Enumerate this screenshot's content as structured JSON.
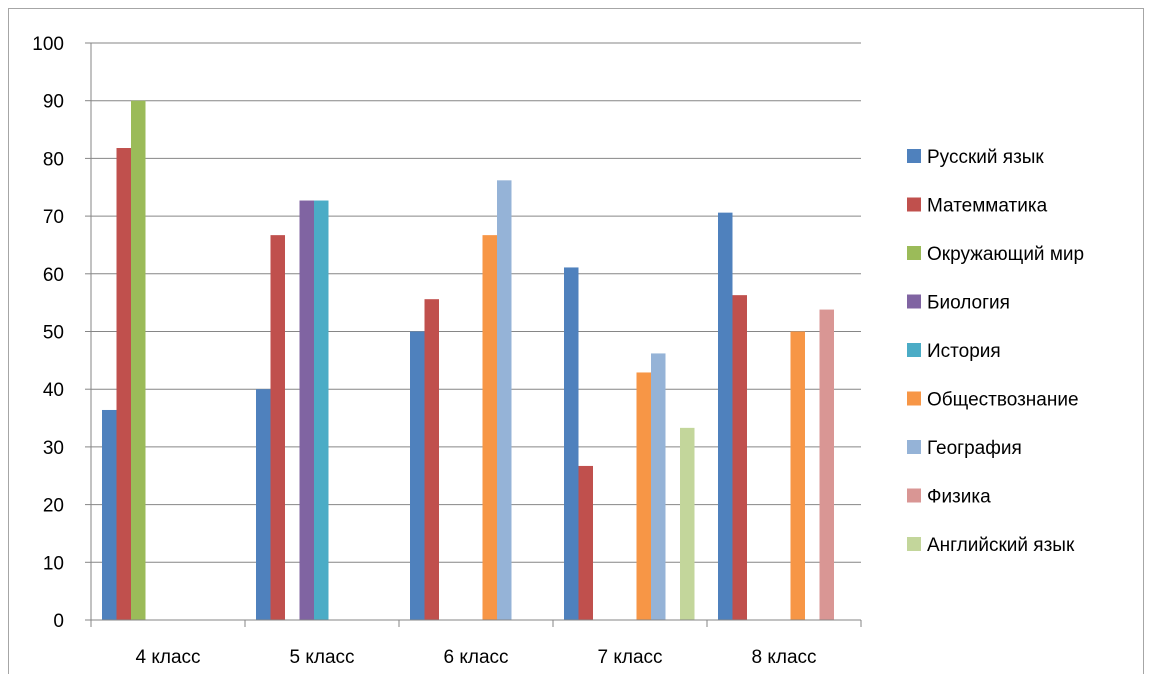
{
  "chart_data": {
    "type": "bar",
    "title": "",
    "xlabel": "",
    "ylabel": "",
    "ylim": [
      0,
      100
    ],
    "yticks": [
      "0",
      "10",
      "20",
      "30",
      "40",
      "50",
      "60",
      "70",
      "80",
      "90",
      "100"
    ],
    "grid": true,
    "legend_position": "right",
    "categories": [
      "4 класс",
      "5 класс",
      "6 класс",
      "7 класс",
      "8 класс"
    ],
    "series": [
      {
        "name": "Русский язык",
        "color": "#4F81BD",
        "values": [
          36.4,
          40,
          50,
          61.1,
          70.6
        ]
      },
      {
        "name": "Матемматика",
        "color": "#C0504D",
        "values": [
          81.8,
          66.7,
          55.6,
          26.7,
          56.3
        ]
      },
      {
        "name": "Окружающий мир",
        "color": "#9BBB59",
        "values": [
          90,
          null,
          null,
          null,
          null
        ]
      },
      {
        "name": "Биология",
        "color": "#8064A2",
        "values": [
          null,
          72.7,
          null,
          null,
          null
        ]
      },
      {
        "name": "История",
        "color": "#4BACC6",
        "values": [
          null,
          72.7,
          null,
          null,
          null
        ]
      },
      {
        "name": "Обществознание",
        "color": "#F79646",
        "values": [
          null,
          null,
          66.7,
          42.9,
          50
        ]
      },
      {
        "name": "География",
        "color": "#95B3D7",
        "values": [
          null,
          null,
          76.2,
          46.2,
          null
        ]
      },
      {
        "name": "Физика",
        "color": "#D99694",
        "values": [
          null,
          null,
          null,
          null,
          53.8
        ]
      },
      {
        "name": "Английский язык",
        "color": "#C3D69B",
        "values": [
          null,
          null,
          null,
          33.3,
          null
        ]
      }
    ]
  }
}
